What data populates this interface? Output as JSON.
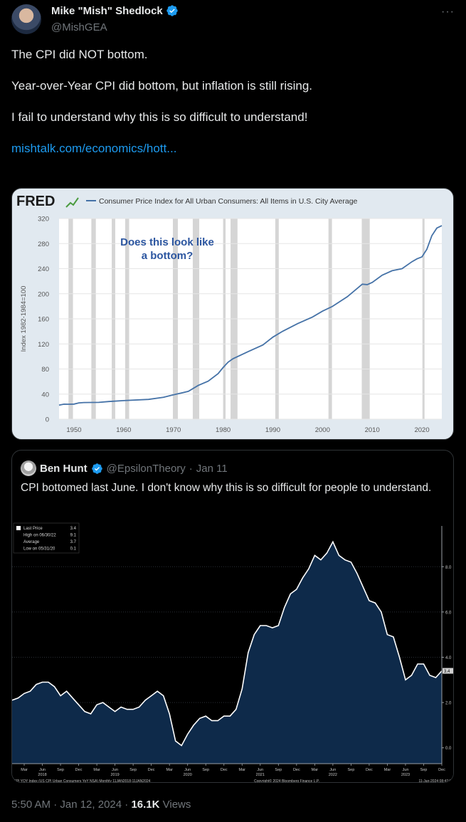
{
  "author": {
    "name": "Mike \"Mish\" Shedlock",
    "handle": "@MishGEA",
    "more_icon": "···"
  },
  "tweet": {
    "line1": "The CPI did NOT bottom.",
    "line2": "Year-over-Year CPI did bottom, but inflation is still rising.",
    "line3": "I fail to understand why this is so difficult to understand!",
    "link": "mishtalk.com/economics/hott..."
  },
  "chart_data": [
    {
      "type": "line",
      "logo": "FRED",
      "title": "Consumer Price Index for All Urban Consumers: All Items in U.S. City Average",
      "ylabel": "Index 1982-1984=100",
      "annotation": "Does this look like a bottom?",
      "ylim": [
        0,
        320
      ],
      "xlim": [
        1947,
        2024
      ],
      "yticks": [
        "0",
        "40",
        "80",
        "120",
        "160",
        "200",
        "240",
        "280",
        "320"
      ],
      "xticks": [
        "1950",
        "1960",
        "1970",
        "1980",
        "1990",
        "2000",
        "2010",
        "2020"
      ],
      "recessions": [
        [
          1948.9,
          1949.8
        ],
        [
          1953.5,
          1954.4
        ],
        [
          1957.6,
          1958.3
        ],
        [
          1960.3,
          1961.1
        ],
        [
          1969.9,
          1970.9
        ],
        [
          1973.9,
          1975.2
        ],
        [
          1980.0,
          1980.5
        ],
        [
          1981.5,
          1982.9
        ],
        [
          1990.5,
          1991.2
        ],
        [
          2001.2,
          2001.9
        ],
        [
          2007.9,
          2009.5
        ],
        [
          2020.1,
          2020.4
        ]
      ],
      "x": [
        1947,
        1948,
        1949,
        1950,
        1951,
        1952,
        1955,
        1957,
        1960,
        1965,
        1968,
        1970,
        1973,
        1975,
        1977,
        1979,
        1980,
        1981,
        1982,
        1985,
        1988,
        1990,
        1992,
        1995,
        1998,
        2000,
        2002,
        2005,
        2008,
        2009,
        2010,
        2012,
        2014,
        2016,
        2018,
        2019,
        2020,
        2021,
        2022,
        2023,
        2024
      ],
      "values": [
        22.3,
        24.0,
        23.8,
        24.1,
        26.0,
        26.6,
        26.8,
        28.1,
        29.6,
        31.5,
        34.8,
        38.8,
        44.4,
        53.8,
        60.6,
        72.6,
        82.4,
        90.9,
        96.5,
        107.6,
        118.3,
        130.7,
        140.3,
        152.4,
        163.0,
        172.2,
        179.9,
        195.3,
        215.3,
        214.6,
        218.1,
        229.6,
        236.7,
        240.0,
        251.1,
        255.7,
        258.8,
        271.0,
        292.7,
        304.7,
        308.5
      ]
    },
    {
      "type": "area",
      "legend": [
        {
          "label": "Last Price",
          "value": "3.4"
        },
        {
          "label": "High on 06/30/22",
          "value": "9.1"
        },
        {
          "label": "Average",
          "value": "3.7"
        },
        {
          "label": "Low on 05/31/20",
          "value": "0.1"
        }
      ],
      "last_value_label": "3.4",
      "yticks": [
        "0.0",
        "2.0",
        "4.0",
        "6.0",
        "8.0"
      ],
      "ylim": [
        -0.7,
        9.8
      ],
      "month_ticks": [
        "Mar",
        "Jun",
        "Sep",
        "Dec",
        "Mar",
        "Jun",
        "Sep",
        "Dec",
        "Mar",
        "Jun",
        "Sep",
        "Dec",
        "Mar",
        "Jun",
        "Sep",
        "Dec",
        "Mar",
        "Jun",
        "Sep",
        "Dec",
        "Mar",
        "Jun",
        "Sep",
        "Dec"
      ],
      "year_ticks": [
        "2018",
        "2019",
        "2020",
        "2021",
        "2022",
        "2023"
      ],
      "footer_left": "CPI YOY Index (US CPI Urban Consumers YoY NSA)  Monthly 11JAN2018-11JAN2024",
      "footer_center": "Copyright© 2024 Bloomberg Finance L.P.",
      "footer_right": "11-Jan-2024 08:47:01",
      "x": [
        "2018-01",
        "2018-02",
        "2018-03",
        "2018-04",
        "2018-05",
        "2018-06",
        "2018-07",
        "2018-08",
        "2018-09",
        "2018-10",
        "2018-11",
        "2018-12",
        "2019-01",
        "2019-02",
        "2019-03",
        "2019-04",
        "2019-05",
        "2019-06",
        "2019-07",
        "2019-08",
        "2019-09",
        "2019-10",
        "2019-11",
        "2019-12",
        "2020-01",
        "2020-02",
        "2020-03",
        "2020-04",
        "2020-05",
        "2020-06",
        "2020-07",
        "2020-08",
        "2020-09",
        "2020-10",
        "2020-11",
        "2020-12",
        "2021-01",
        "2021-02",
        "2021-03",
        "2021-04",
        "2021-05",
        "2021-06",
        "2021-07",
        "2021-08",
        "2021-09",
        "2021-10",
        "2021-11",
        "2021-12",
        "2022-01",
        "2022-02",
        "2022-03",
        "2022-04",
        "2022-05",
        "2022-06",
        "2022-07",
        "2022-08",
        "2022-09",
        "2022-10",
        "2022-11",
        "2022-12",
        "2023-01",
        "2023-02",
        "2023-03",
        "2023-04",
        "2023-05",
        "2023-06",
        "2023-07",
        "2023-08",
        "2023-09",
        "2023-10",
        "2023-11",
        "2023-12"
      ],
      "values": [
        2.1,
        2.2,
        2.4,
        2.5,
        2.8,
        2.9,
        2.9,
        2.7,
        2.3,
        2.5,
        2.2,
        1.9,
        1.6,
        1.5,
        1.9,
        2.0,
        1.8,
        1.6,
        1.8,
        1.7,
        1.7,
        1.8,
        2.1,
        2.3,
        2.5,
        2.3,
        1.5,
        0.3,
        0.1,
        0.6,
        1.0,
        1.3,
        1.4,
        1.2,
        1.2,
        1.4,
        1.4,
        1.7,
        2.6,
        4.2,
        5.0,
        5.4,
        5.4,
        5.3,
        5.4,
        6.2,
        6.8,
        7.0,
        7.5,
        7.9,
        8.5,
        8.3,
        8.6,
        9.1,
        8.5,
        8.3,
        8.2,
        7.7,
        7.1,
        6.5,
        6.4,
        6.0,
        5.0,
        4.9,
        4.0,
        3.0,
        3.2,
        3.7,
        3.7,
        3.2,
        3.1,
        3.4
      ]
    }
  ],
  "quote": {
    "name": "Ben Hunt",
    "handle": "@EpsilonTheory",
    "date": "Jan 11",
    "text": "CPI bottomed last June. I don't know why this is so difficult for people to understand."
  },
  "footer": {
    "time": "5:50 AM · Jan 12, 2024 · ",
    "views_count": "16.1K",
    "views_label": " Views"
  },
  "colors": {
    "link": "#1d9bf0",
    "verified": "#1d9bf0",
    "fred_line": "#4572a7",
    "fred_bg": "#e1e9f0",
    "bbg_fill": "#0e2a4a"
  }
}
